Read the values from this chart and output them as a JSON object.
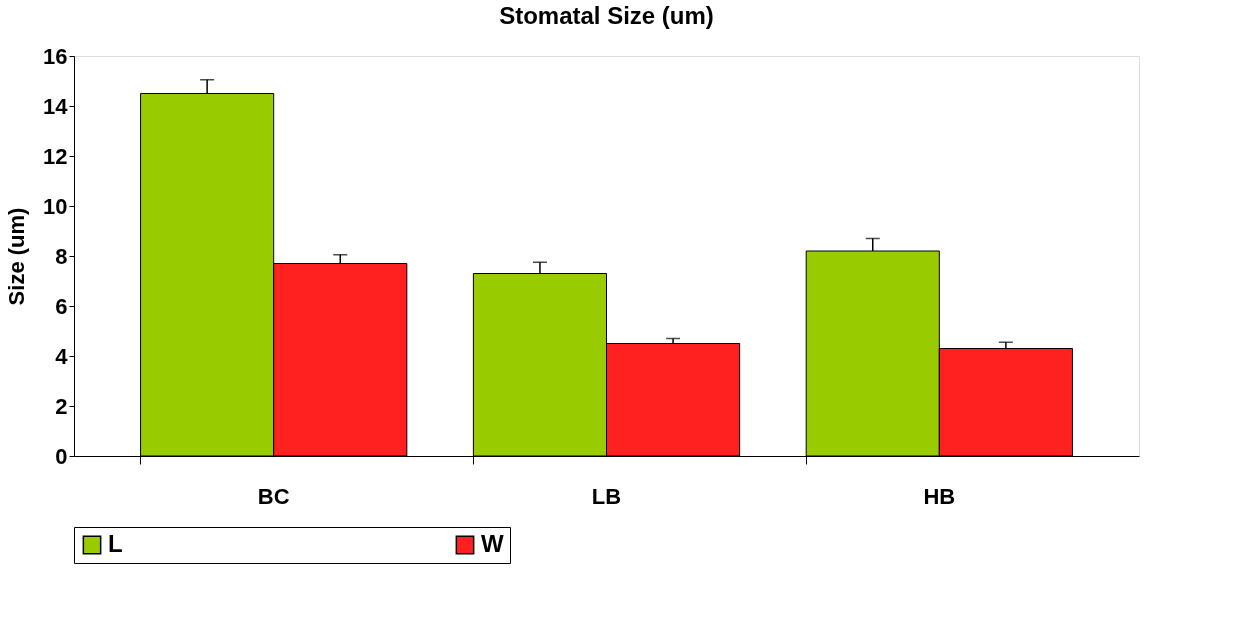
{
  "chart_data": {
    "type": "bar",
    "title": "Stomatal Size (um)",
    "ylabel": "Size (um)",
    "categories": [
      "BC",
      "LB",
      "HB"
    ],
    "series": [
      {
        "name": "L",
        "color": "#99cc00",
        "values": [
          14.5,
          7.3,
          8.2
        ],
        "errors": [
          [
            14.5,
            15.05
          ],
          [
            7.3,
            7.75
          ],
          [
            8.2,
            8.7
          ]
        ]
      },
      {
        "name": "W",
        "color": "#ff2020",
        "values": [
          7.7,
          4.5,
          4.3
        ],
        "errors": [
          [
            7.7,
            8.05
          ],
          [
            4.5,
            4.7
          ],
          [
            4.3,
            4.55
          ]
        ]
      }
    ],
    "ylim": [
      0,
      16
    ],
    "yticks": [
      0,
      2,
      4,
      6,
      8,
      10,
      12,
      14,
      16
    ],
    "grid": false,
    "legend": "bottom"
  }
}
